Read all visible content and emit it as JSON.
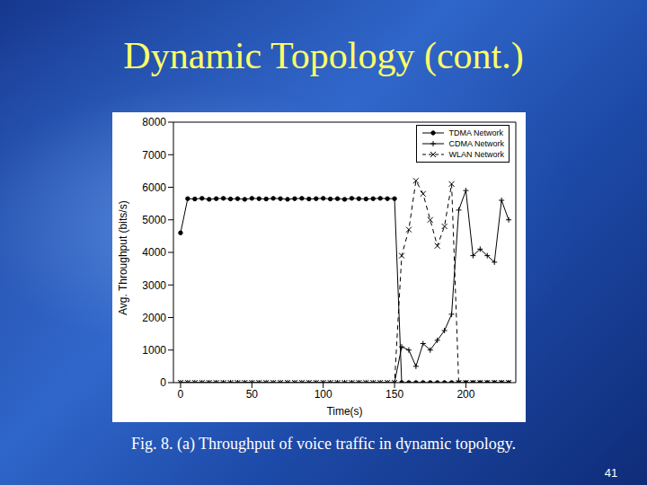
{
  "title": "Dynamic Topology (cont.)",
  "caption": "Fig. 8. (a) Throughput of voice traffic in dynamic topology.",
  "page_number": "41",
  "chart_data": {
    "type": "line",
    "x_label": "Time(s)",
    "y_label": "Avg. Throughput (bits/s)",
    "x": [
      0,
      5,
      10,
      15,
      20,
      25,
      30,
      35,
      40,
      45,
      50,
      55,
      60,
      65,
      70,
      75,
      80,
      85,
      90,
      95,
      100,
      105,
      110,
      115,
      120,
      125,
      130,
      135,
      140,
      145,
      150,
      155,
      160,
      165,
      170,
      175,
      180,
      185,
      190,
      195,
      200,
      205,
      210,
      215,
      220,
      225,
      230
    ],
    "series": [
      {
        "name": "TDMA Network",
        "color": "#000000",
        "marker": "circle",
        "line_style": "solid",
        "values": [
          4600,
          5650,
          5640,
          5660,
          5630,
          5650,
          5660,
          5640,
          5650,
          5630,
          5660,
          5650,
          5640,
          5660,
          5650,
          5630,
          5650,
          5660,
          5640,
          5650,
          5660,
          5640,
          5650,
          5630,
          5660,
          5650,
          5640,
          5650,
          5660,
          5650,
          5650,
          0,
          0,
          0,
          0,
          0,
          0,
          0,
          0,
          0,
          0,
          0,
          0,
          0,
          0,
          0,
          0
        ]
      },
      {
        "name": "CDMA Network",
        "color": "#000000",
        "marker": "plus",
        "line_style": "solid",
        "values": [
          0,
          0,
          0,
          0,
          0,
          0,
          0,
          0,
          0,
          0,
          0,
          0,
          0,
          0,
          0,
          0,
          0,
          0,
          0,
          0,
          0,
          0,
          0,
          0,
          0,
          0,
          0,
          0,
          0,
          0,
          0,
          1100,
          1000,
          500,
          1200,
          1000,
          1300,
          1600,
          2100,
          5300,
          5900,
          3900,
          4100,
          3900,
          3700,
          5600,
          5000
        ]
      },
      {
        "name": "WLAN Network",
        "color": "#000000",
        "marker": "x",
        "line_style": "dashed",
        "values": [
          0,
          0,
          0,
          0,
          0,
          0,
          0,
          0,
          0,
          0,
          0,
          0,
          0,
          0,
          0,
          0,
          0,
          0,
          0,
          0,
          0,
          0,
          0,
          0,
          0,
          0,
          0,
          0,
          0,
          0,
          0,
          3900,
          4700,
          6200,
          5800,
          5000,
          4200,
          4800,
          6100,
          0,
          0,
          0,
          0,
          0,
          0,
          0,
          0
        ]
      }
    ],
    "xlim": [
      -5,
      235
    ],
    "xticks": [
      0,
      50,
      100,
      150,
      200
    ],
    "ylim": [
      0,
      8000
    ],
    "yticks": [
      0,
      1000,
      2000,
      3000,
      4000,
      5000,
      6000,
      7000,
      8000
    ],
    "grid": false,
    "legend": "upper right"
  }
}
